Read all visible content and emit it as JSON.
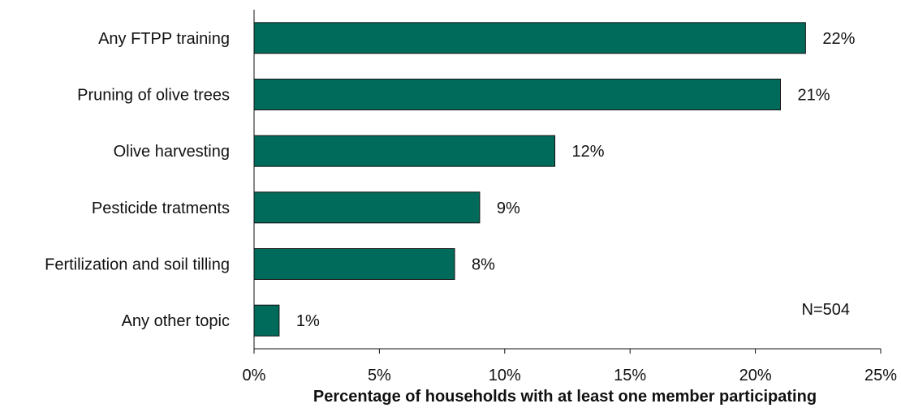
{
  "chart_data": {
    "type": "bar",
    "orientation": "horizontal",
    "categories": [
      "Any FTPP training",
      "Pruning of olive trees",
      "Olive harvesting",
      "Pesticide tratments",
      "Fertilization and soil tilling",
      "Any other topic"
    ],
    "values": [
      22,
      21,
      12,
      9,
      8,
      1
    ],
    "value_labels": [
      "22%",
      "21%",
      "12%",
      "9%",
      "8%",
      "1%"
    ],
    "xlabel": "Percentage of households with at least one member participating",
    "ylabel": "",
    "xlim": [
      0,
      25
    ],
    "x_ticks": [
      0,
      5,
      10,
      15,
      20,
      25
    ],
    "x_tick_labels": [
      "0%",
      "5%",
      "10%",
      "15%",
      "20%",
      "25%"
    ],
    "annotation": "N=504",
    "bar_color": "#006b5a",
    "grid": false,
    "legend": "none"
  }
}
